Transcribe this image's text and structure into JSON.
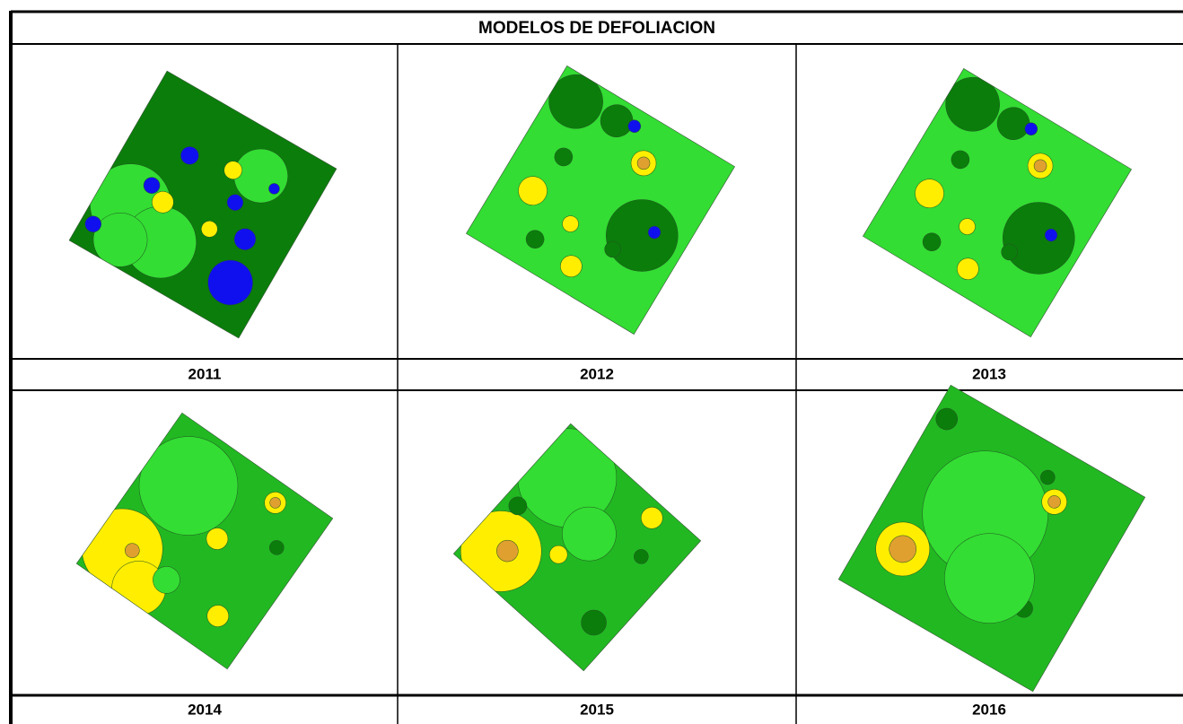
{
  "title": "MODELOS DE DEFOLIACION",
  "panels": [
    {
      "year": "2011"
    },
    {
      "year": "2012"
    },
    {
      "year": "2013"
    },
    {
      "year": "2014"
    },
    {
      "year": "2015"
    },
    {
      "year": "2016"
    }
  ]
}
